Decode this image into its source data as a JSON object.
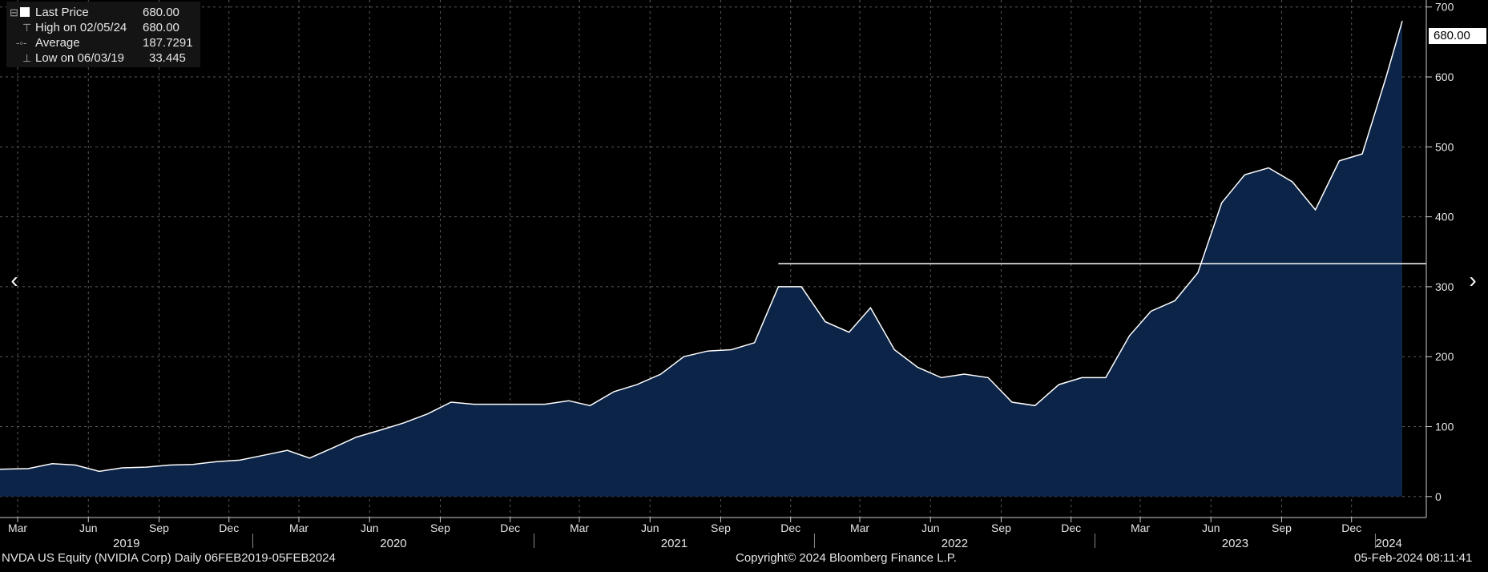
{
  "legend": {
    "last_price_label": "Last Price",
    "last_price_value": "680.00",
    "high_label": "High on 02/05/24",
    "high_value": "680.00",
    "average_label": "Average",
    "average_value": "187.7291",
    "low_label": "Low on 06/03/19",
    "low_value": "33.445"
  },
  "last_price_tag": "680.00",
  "footer": {
    "security": "NVDA US Equity (NVIDIA Corp)  Daily 06FEB2019-05FEB2024",
    "copyright": "Copyright© 2024 Bloomberg Finance L.P.",
    "timestamp": "05-Feb-2024 08:11:41"
  },
  "nav": {
    "prev": "‹",
    "next": "›"
  },
  "colors": {
    "background": "#000000",
    "area_fill": "#0b2447",
    "line": "#ffffff",
    "grid": "#5a5a5a"
  },
  "chart_data": {
    "type": "area",
    "ylim": [
      -30,
      710
    ],
    "yticks": [
      0,
      100,
      200,
      300,
      400,
      500,
      600,
      700
    ],
    "month_ticks": [
      "Mar",
      "Jun",
      "Sep",
      "Dec",
      "Mar",
      "Jun",
      "Sep",
      "Dec",
      "Mar",
      "Jun",
      "Sep",
      "Dec",
      "Mar",
      "Jun",
      "Sep",
      "Dec",
      "Mar",
      "Jun",
      "Sep",
      "Dec"
    ],
    "year_labels": [
      "2019",
      "2020",
      "2021",
      "2022",
      "2023",
      "2024"
    ],
    "reference_line": {
      "value": 333,
      "from": "2021-11",
      "to": "2024-02"
    },
    "series": [
      {
        "x": [
          "2019-02",
          "2019-03",
          "2019-04",
          "2019-05",
          "2019-06",
          "2019-07",
          "2019-08",
          "2019-09",
          "2019-10",
          "2019-11",
          "2019-12",
          "2020-01",
          "2020-02",
          "2020-03",
          "2020-04",
          "2020-05",
          "2020-06",
          "2020-07",
          "2020-08",
          "2020-09",
          "2020-10",
          "2020-11",
          "2020-12",
          "2021-01",
          "2021-02",
          "2021-03",
          "2021-04",
          "2021-05",
          "2021-06",
          "2021-07",
          "2021-08",
          "2021-09",
          "2021-10",
          "2021-11",
          "2021-12",
          "2022-01",
          "2022-02",
          "2022-03",
          "2022-04",
          "2022-05",
          "2022-06",
          "2022-07",
          "2022-08",
          "2022-09",
          "2022-10",
          "2022-11",
          "2022-12",
          "2023-01",
          "2023-02",
          "2023-03",
          "2023-04",
          "2023-05",
          "2023-06",
          "2023-07",
          "2023-08",
          "2023-09",
          "2023-10",
          "2023-11",
          "2023-12",
          "2024-01",
          "2024-02"
        ],
        "values": [
          39,
          40,
          47,
          45,
          36,
          41,
          42,
          45,
          46,
          50,
          52,
          59,
          66,
          55,
          70,
          85,
          95,
          105,
          118,
          135,
          132,
          132,
          132,
          132,
          137,
          130,
          150,
          160,
          175,
          200,
          208,
          210,
          220,
          300,
          300,
          250,
          235,
          270,
          210,
          185,
          170,
          175,
          170,
          135,
          130,
          160,
          170,
          170,
          230,
          265,
          280,
          320,
          420,
          460,
          470,
          450,
          410,
          480,
          490,
          600,
          680
        ]
      }
    ]
  }
}
